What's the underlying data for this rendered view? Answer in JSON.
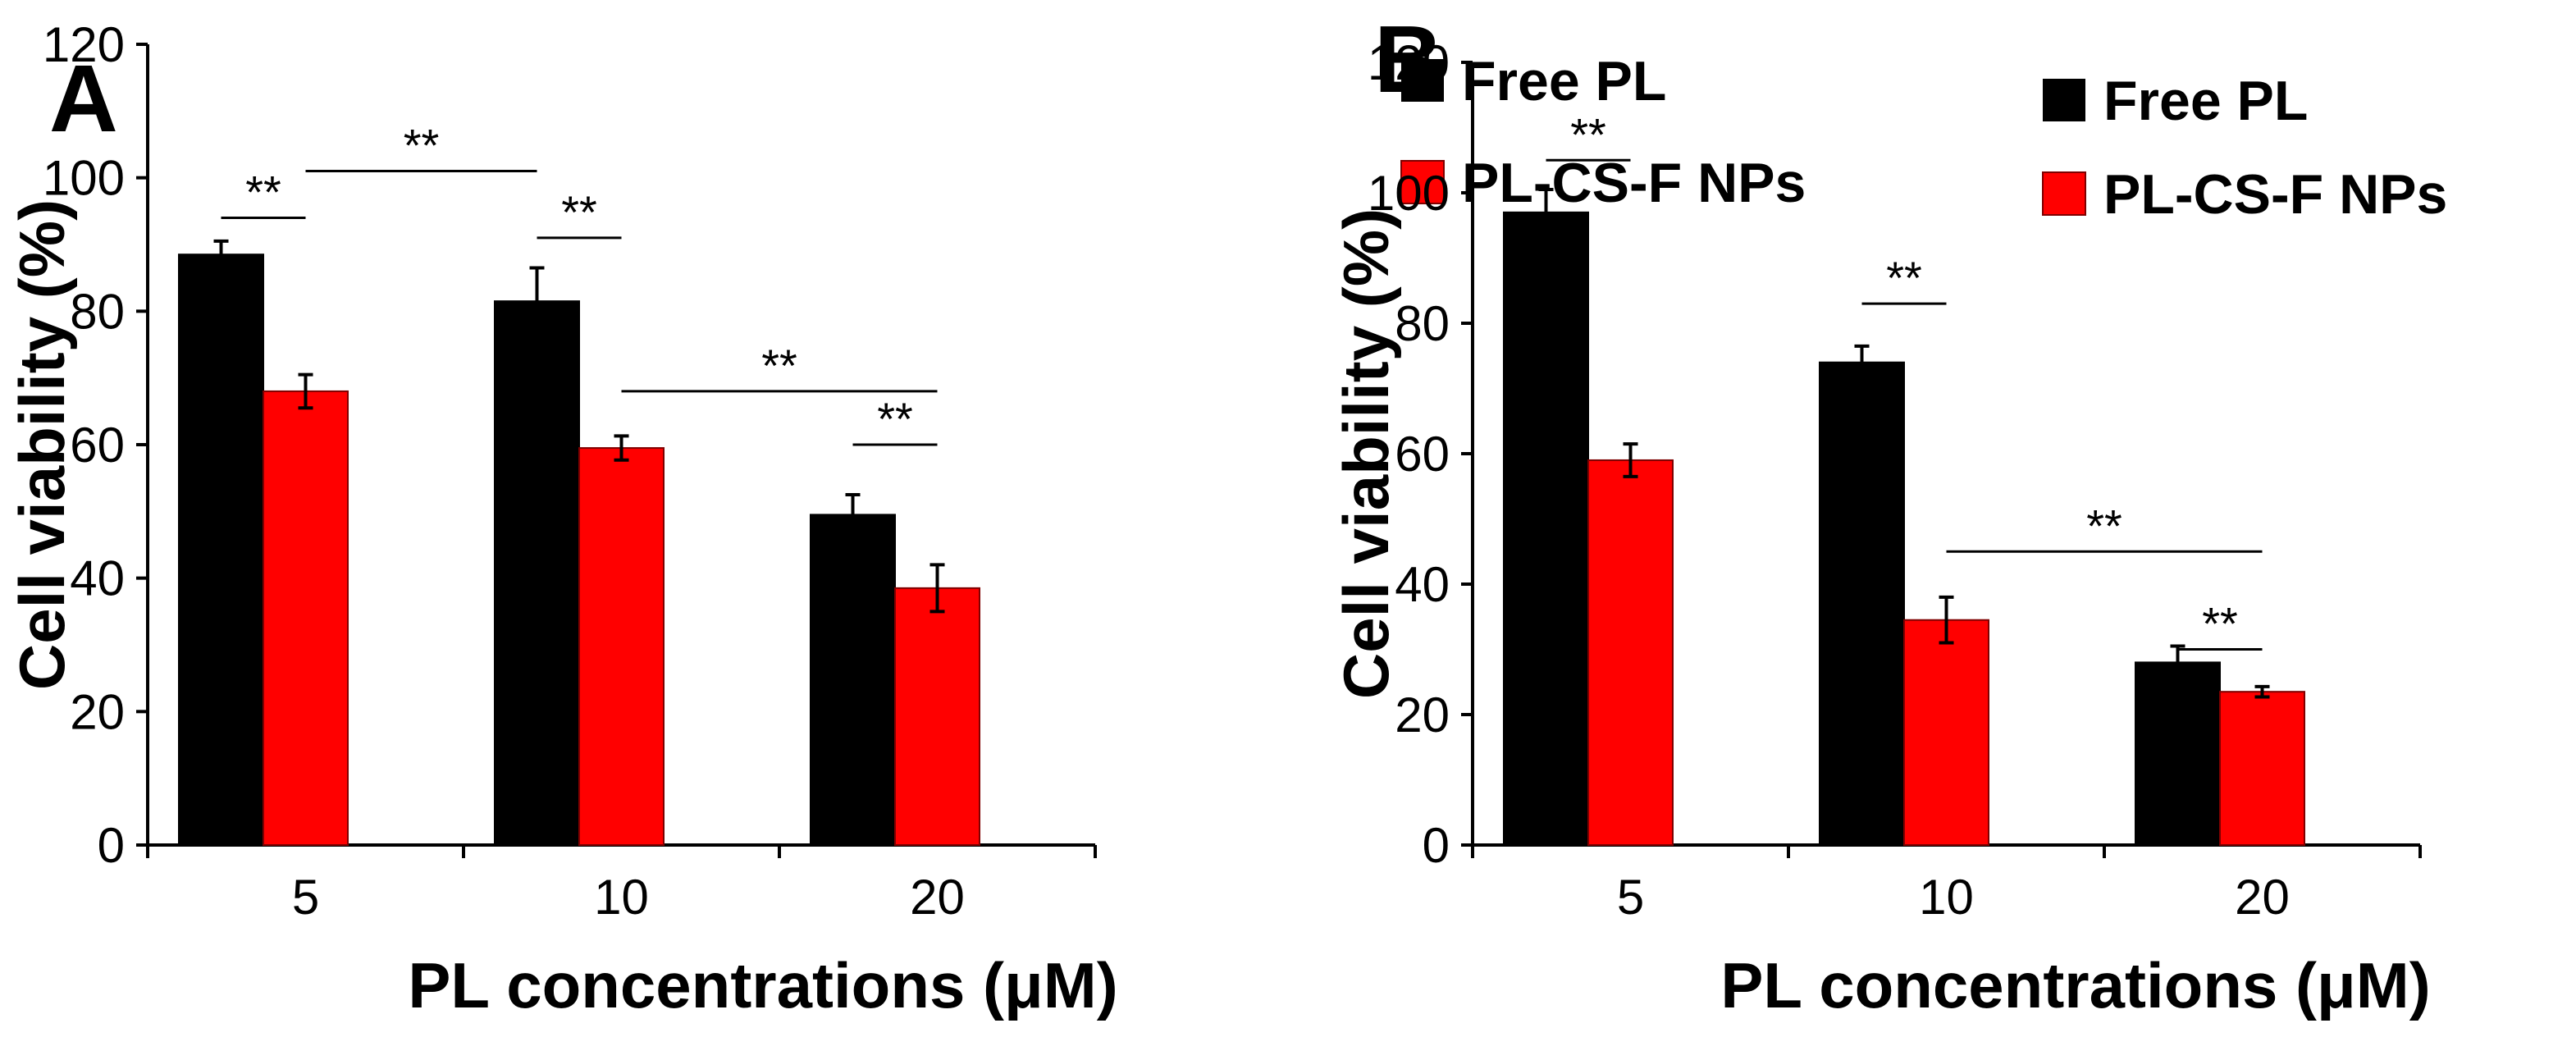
{
  "chart_data": [
    {
      "panel": "A",
      "type": "bar",
      "categories": [
        "5",
        "10",
        "20"
      ],
      "series": [
        {
          "name": "Free PL",
          "values": [
            88.5,
            81.5,
            49.5
          ],
          "errors": [
            2.0,
            5.0,
            3.0
          ]
        },
        {
          "name": "PL-CS-F NPs",
          "values": [
            68,
            59.5,
            38.5
          ],
          "errors": [
            2.5,
            1.8,
            3.5
          ]
        }
      ],
      "xlabel": "PL concentrations (μM)",
      "ylabel": "Cell viability (%)",
      "ylim": [
        0,
        120
      ],
      "yticks": [
        "0",
        "20",
        "40",
        "60",
        "80",
        "100",
        "120"
      ],
      "legend_position": "top-right",
      "significance": [
        {
          "text": "**",
          "from": [
            "5",
            0
          ],
          "to": [
            "5",
            1
          ],
          "level": 94
        },
        {
          "text": "**",
          "from": [
            "5",
            1
          ],
          "to": [
            "10",
            0
          ],
          "level": 101
        },
        {
          "text": "**",
          "from": [
            "10",
            0
          ],
          "to": [
            "10",
            1
          ],
          "level": 91
        },
        {
          "text": "**",
          "from": [
            "10",
            1
          ],
          "to": [
            "20",
            1
          ],
          "level": 68
        },
        {
          "text": "**",
          "from": [
            "20",
            0
          ],
          "to": [
            "20",
            1
          ],
          "level": 60
        }
      ]
    },
    {
      "panel": "B",
      "type": "bar",
      "categories": [
        "5",
        "10",
        "20"
      ],
      "series": [
        {
          "name": "Free PL",
          "values": [
            97,
            74,
            28
          ],
          "errors": [
            3.5,
            2.5,
            2.5
          ]
        },
        {
          "name": "PL-CS-F NPs",
          "values": [
            59,
            34.5,
            23.5
          ],
          "errors": [
            2.5,
            3.5,
            0.8
          ]
        }
      ],
      "xlabel": "PL concentrations (μM)",
      "ylabel": "Cell viability (%)",
      "ylim": [
        0,
        120
      ],
      "yticks": [
        "0",
        "20",
        "40",
        "60",
        "80",
        "100",
        "120"
      ],
      "legend_position": "top-right",
      "significance": [
        {
          "text": "**",
          "from": [
            "5",
            0
          ],
          "to": [
            "5",
            1
          ],
          "level": 105
        },
        {
          "text": "**",
          "from": [
            "10",
            0
          ],
          "to": [
            "10",
            1
          ],
          "level": 83
        },
        {
          "text": "**",
          "from": [
            "10",
            1
          ],
          "to": [
            "20",
            1
          ],
          "level": 45
        },
        {
          "text": "**",
          "from": [
            "20",
            0
          ],
          "to": [
            "20",
            1
          ],
          "level": 30
        }
      ]
    }
  ],
  "colors": {
    "free_pl": "#000000",
    "np": "#ff0000",
    "np_stroke": "#7f0000",
    "axis": "#000000"
  }
}
